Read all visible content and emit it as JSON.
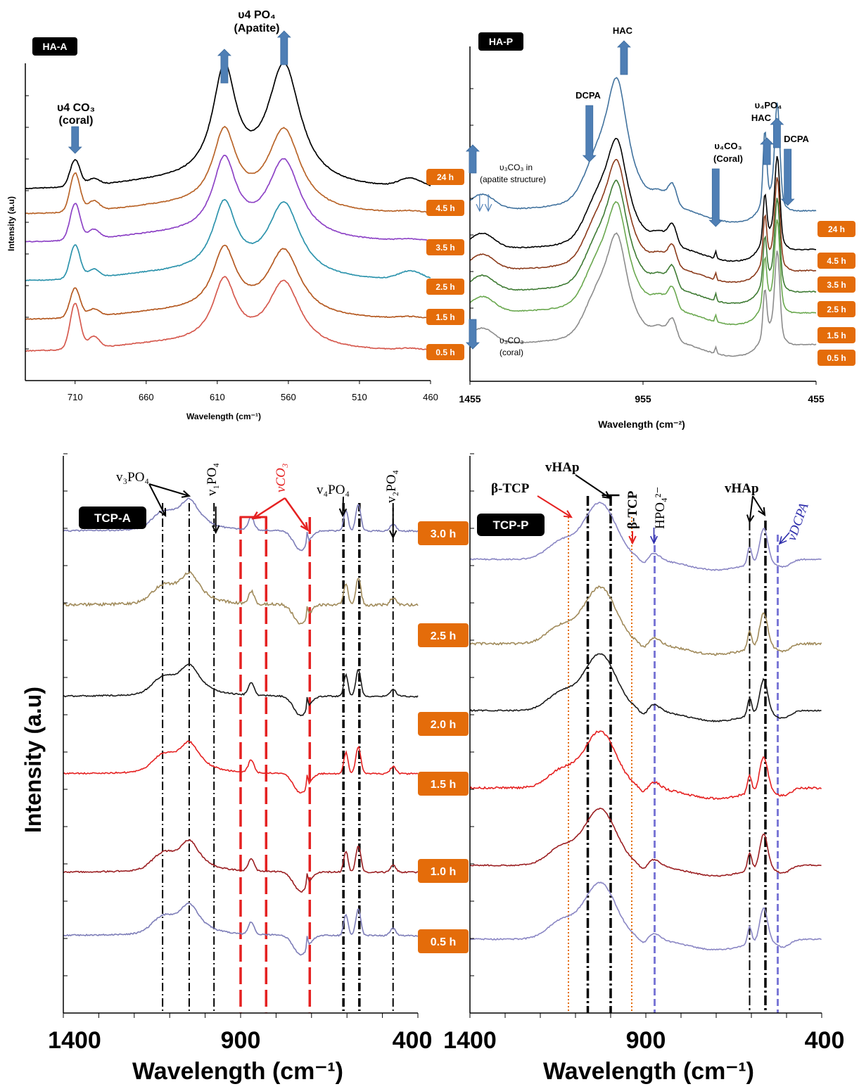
{
  "panels": [
    {
      "id": "ha-a",
      "badge": "HA-A",
      "xlabel": "Wavelength (cm⁻¹)",
      "ylabel": "Intensity (a.u)",
      "tick_labels": [
        "710",
        "660",
        "610",
        "560",
        "510",
        "460"
      ],
      "series_labels": [
        "24 h",
        "4.5 h",
        "3.5 h",
        "2.5 h",
        "1.5 h",
        "0.5 h"
      ],
      "annotations": [
        {
          "text": "υ4 CO₃",
          "x": 710
        },
        {
          "text": "(coral)",
          "x": 710
        },
        {
          "text": "υ4 PO₄",
          "x": 585
        },
        {
          "text": "(Apatite)",
          "x": 585
        }
      ]
    },
    {
      "id": "ha-p",
      "badge": "HA-P",
      "xlabel": "Wavelength (cm⁻²)",
      "tick_labels": [
        "1455",
        "955",
        "455"
      ],
      "series_labels": [
        "24 h",
        "4.5 h",
        "3.5 h",
        "2.5 h",
        "1.5 h",
        "0.5 h"
      ],
      "annotations": [
        {
          "text": "HAC",
          "x": 1010
        },
        {
          "text": "DCPA",
          "x": 1100
        },
        {
          "text": "υ₄CO₃",
          "x": 740
        },
        {
          "text": "(Coral)",
          "x": 740
        },
        {
          "text": "υ₄PO₄",
          "x": 560
        },
        {
          "text": "HAC",
          "x": 560
        },
        {
          "text": "DCPA",
          "x": 530
        },
        {
          "text": "υ₃CO₃ in",
          "x": 1380
        },
        {
          "text": "(apatite structure)",
          "x": 1380
        },
        {
          "text": "υ₃CO₃",
          "x": 1420
        },
        {
          "text": "(coral)",
          "x": 1420
        }
      ]
    },
    {
      "id": "tcp-a",
      "badge": "TCP-A",
      "xlabel": "Wavelength (cm⁻¹)",
      "ylabel": "Intensity (a.u)",
      "tick_labels": [
        "1400",
        "900",
        "400"
      ],
      "series_labels": [
        "3.0 h",
        "2.5 h",
        "2.0 h",
        "1.5 h",
        "1.0 h",
        "0.5 h"
      ],
      "annotations": [
        {
          "text": "v₃PO₄",
          "x": 1070
        },
        {
          "text": "v₁PO₄",
          "x": 965
        },
        {
          "text": "vCO₃",
          "x": 840
        },
        {
          "text": "v₄PO₄",
          "x": 580
        },
        {
          "text": "v₂PO₄",
          "x": 465
        }
      ]
    },
    {
      "id": "tcp-p",
      "badge": "TCP-P",
      "xlabel": "Wavelength (cm⁻¹)",
      "tick_labels": [
        "1400",
        "900",
        "400"
      ],
      "series_labels": [],
      "annotations": [
        {
          "text": "β-TCP",
          "x": 1130
        },
        {
          "text": "vHAp",
          "x": 1005
        },
        {
          "text": "β-TCP",
          "x": 940
        },
        {
          "text": "HPO₄²⁻",
          "x": 880
        },
        {
          "text": "vHAp",
          "x": 575
        },
        {
          "text": "vDCPA",
          "x": 500
        }
      ]
    }
  ],
  "colors": {
    "badge_bg": "#e46c0a",
    "arrow_blue": "#4f7fb5",
    "black": "#000000",
    "red": "#e52121"
  },
  "chart_data": [
    {
      "type": "line",
      "panel": "HA-A",
      "xlabel": "Wavelength (cm⁻¹)",
      "ylabel": "Intensity (a.u)",
      "xlim": [
        745,
        460
      ],
      "xticks": [
        710,
        660,
        610,
        560,
        510,
        460
      ],
      "series": [
        {
          "name": "24 h",
          "color": "#000000"
        },
        {
          "name": "4.5 h",
          "color": "#b9652a"
        },
        {
          "name": "3.5 h",
          "color": "#8e44c6"
        },
        {
          "name": "2.5 h",
          "color": "#2e94ad"
        },
        {
          "name": "1.5 h",
          "color": "#b55a22"
        },
        {
          "name": "0.5 h",
          "color": "#d65a4f"
        }
      ],
      "peaks_cm": [
        710,
        697,
        605,
        563,
        474
      ]
    },
    {
      "type": "line",
      "panel": "HA-P",
      "xlabel": "Wavelength (cm⁻²)",
      "xlim": [
        1455,
        455
      ],
      "xticks": [
        1455,
        955,
        455
      ],
      "series": [
        {
          "name": "24 h",
          "color": "#41729e"
        },
        {
          "name": "4.5 h",
          "color": "#000000"
        },
        {
          "name": "3.5 h",
          "color": "#8b3a1a"
        },
        {
          "name": "2.5 h",
          "color": "#3f7b34"
        },
        {
          "name": "1.5 h",
          "color": "#6aa84f"
        },
        {
          "name": "0.5 h",
          "color": "#8c8c8c"
        }
      ],
      "peaks_cm": [
        1420,
        1030,
        870,
        745,
        603,
        565
      ]
    },
    {
      "type": "line",
      "panel": "TCP-A",
      "xlabel": "Wavelength (cm⁻¹)",
      "ylabel": "Intensity (a.u)",
      "xlim": [
        1400,
        400
      ],
      "xticks": [
        1400,
        900,
        400
      ],
      "series": [
        {
          "name": "3.0 h",
          "color": "#7d7db8"
        },
        {
          "name": "2.5 h",
          "color": "#a08a5a"
        },
        {
          "name": "2.0 h",
          "color": "#1a1a1a"
        },
        {
          "name": "1.5 h",
          "color": "#e52121"
        },
        {
          "name": "1.0 h",
          "color": "#9b1f22"
        },
        {
          "name": "0.5 h",
          "color": "#7d7db8"
        }
      ],
      "reference_lines_cm": [
        1120,
        1045,
        975,
        900,
        828,
        705,
        610,
        565,
        470
      ]
    },
    {
      "type": "line",
      "panel": "TCP-P",
      "xlabel": "Wavelength (cm⁻¹)",
      "xlim": [
        1400,
        400
      ],
      "xticks": [
        1400,
        900,
        400
      ],
      "series": [
        {
          "color": "#8a86c4"
        },
        {
          "color": "#a08a5a"
        },
        {
          "color": "#1a1a1a"
        },
        {
          "color": "#e52121"
        },
        {
          "color": "#9b1f22"
        },
        {
          "color": "#8a86c4"
        }
      ],
      "reference_lines_cm": [
        1120,
        1065,
        1000,
        945,
        875,
        605,
        565,
        525
      ]
    }
  ]
}
